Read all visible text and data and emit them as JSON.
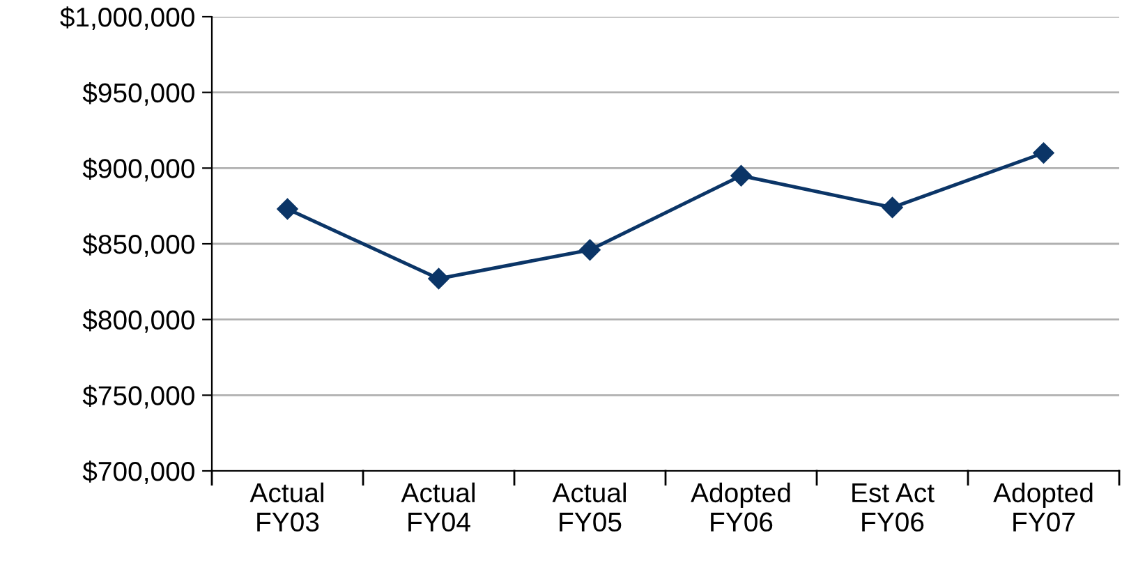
{
  "chart_data": {
    "type": "line",
    "categories": [
      "Actual\nFY03",
      "Actual\nFY04",
      "Actual\nFY05",
      "Adopted\nFY06",
      "Est Act\nFY06",
      "Adopted\nFY07"
    ],
    "series": [
      {
        "color": "#0b3567",
        "values": [
          873000,
          827000,
          846000,
          895000,
          874000,
          910000
        ]
      }
    ],
    "ylim": [
      700000,
      1000000
    ],
    "yticks": [
      {
        "value": 700000,
        "label": "$700,000"
      },
      {
        "value": 750000,
        "label": "$750,000"
      },
      {
        "value": 800000,
        "label": "$800,000"
      },
      {
        "value": 850000,
        "label": "$850,000"
      },
      {
        "value": 900000,
        "label": "$900,000"
      },
      {
        "value": 950000,
        "label": "$950,000"
      },
      {
        "value": 1000000,
        "label": "$1,000,000"
      }
    ],
    "grid": "y",
    "marker": "diamond",
    "line_style": "solid",
    "legend": false
  }
}
